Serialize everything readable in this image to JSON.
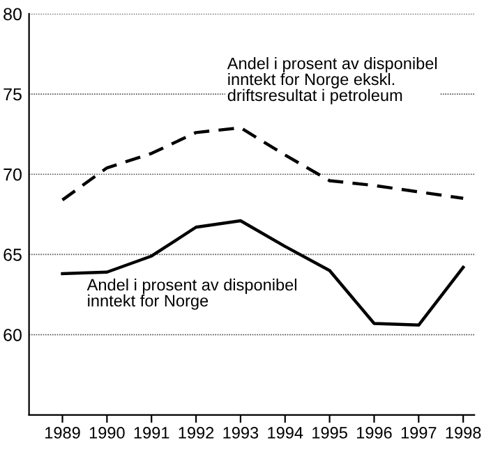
{
  "chart_data": {
    "type": "line",
    "categories": [
      "1989",
      "1990",
      "1991",
      "1992",
      "1993",
      "1994",
      "1995",
      "1996",
      "1997",
      "1998"
    ],
    "series": [
      {
        "name": "Andel i prosent av disponibel inntekt for Norge ekskl. driftsresultat i petroleum",
        "color": "#000000",
        "line_style": "dashed",
        "values": [
          68.4,
          70.4,
          71.3,
          72.6,
          72.9,
          71.2,
          69.6,
          69.3,
          68.9,
          68.5
        ]
      },
      {
        "name": "Andel i prosent av disponibel inntekt for Norge",
        "color": "#000000",
        "line_style": "solid",
        "values": [
          63.8,
          63.9,
          64.9,
          66.7,
          67.1,
          65.5,
          64.0,
          60.7,
          60.6,
          64.2
        ]
      }
    ],
    "ylim": [
      55,
      80
    ],
    "yticks": [
      60,
      65,
      70,
      75,
      80
    ],
    "grid": "y",
    "legend": false
  }
}
